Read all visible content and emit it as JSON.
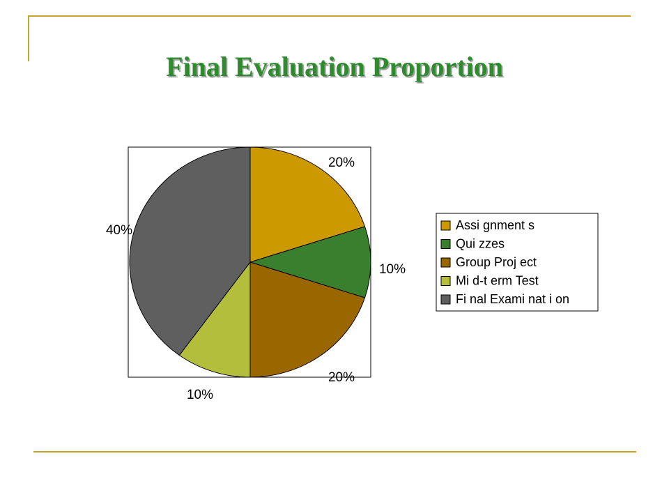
{
  "slide": {
    "title": "Final Evaluation Proportion",
    "accent_color": "#c9a227",
    "title_color": "#2e8b2e"
  },
  "chart_data": {
    "type": "pie",
    "title": "",
    "categories": [
      "Assignments",
      "Quizzes",
      "Group Project",
      "Mid-term Test",
      "Final Examination"
    ],
    "values": [
      20,
      10,
      20,
      10,
      40
    ],
    "data_labels": [
      "20%",
      "10%",
      "20%",
      "10%",
      "40%"
    ],
    "colors": [
      "#cc9900",
      "#3a7f2e",
      "#996600",
      "#b3bf3c",
      "#5f5f5f"
    ],
    "legend_labels": [
      "Assi gnment s",
      "Qui zzes",
      "Group Proj ect",
      "Mi d-t erm Test",
      "Fi nal Exami nat i on"
    ],
    "legend_position": "right",
    "start_angle_deg": 0,
    "direction": "clockwise"
  }
}
